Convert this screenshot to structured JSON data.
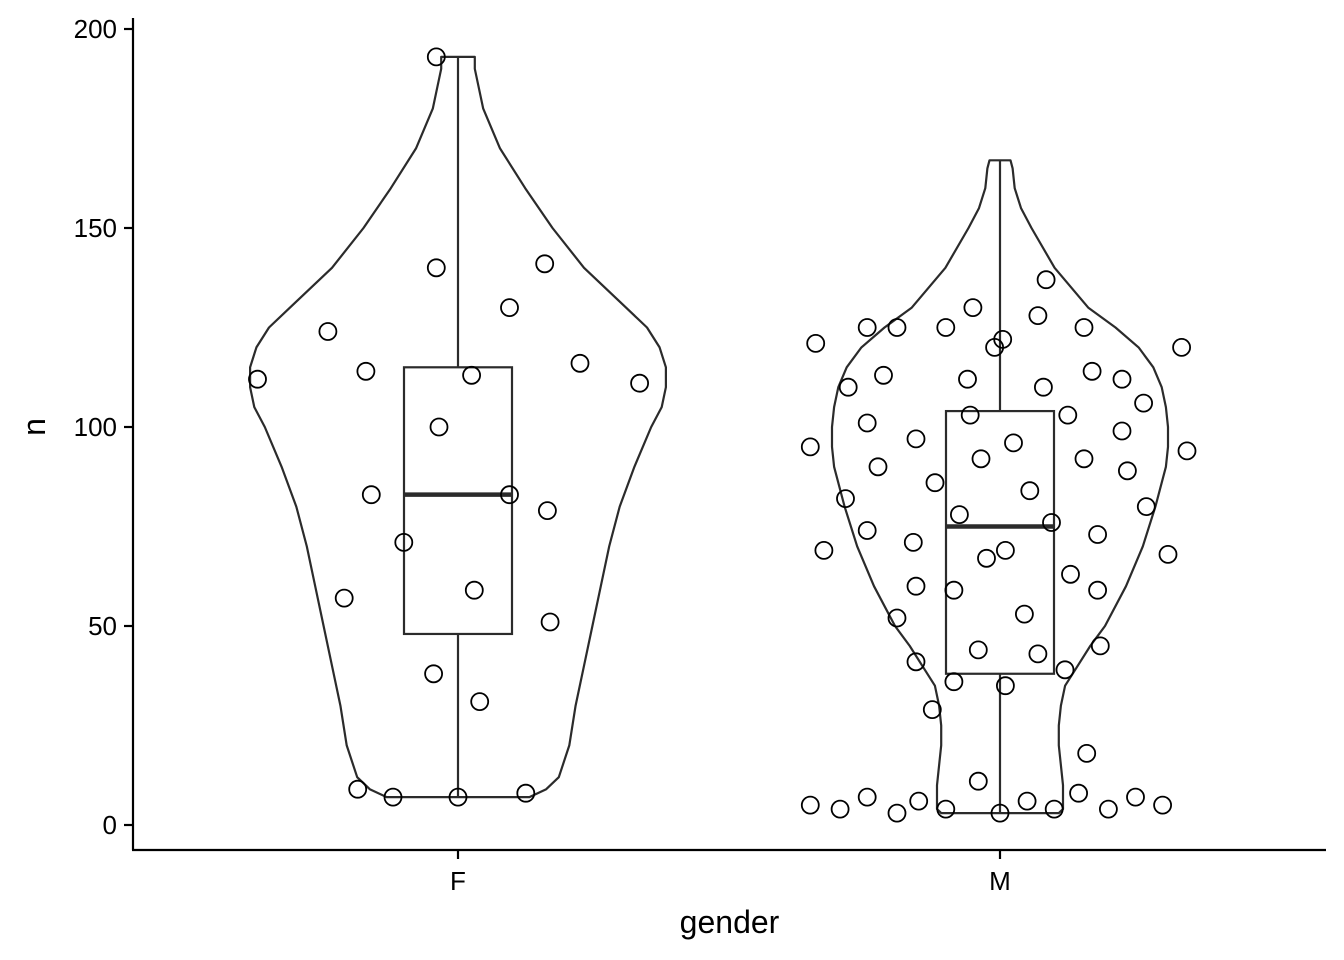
{
  "chart_data": {
    "type": "violin",
    "xlabel": "gender",
    "ylabel": "n",
    "categories": [
      "F",
      "M"
    ],
    "ylim": [
      -6,
      202
    ],
    "yticks": [
      0,
      50,
      100,
      150,
      200
    ],
    "grid": false,
    "colors": {
      "line": "#2b2b2b",
      "axis": "#000000",
      "background": "#ffffff",
      "point_fill": "#ffffff"
    },
    "groups": [
      {
        "name": "F",
        "box": {
          "min": 7,
          "q1": 48,
          "median": 83,
          "q3": 115,
          "max": 193
        },
        "violin": [
          [
            7,
            0.34
          ],
          [
            9,
            0.42
          ],
          [
            12,
            0.48
          ],
          [
            20,
            0.53
          ],
          [
            30,
            0.56
          ],
          [
            40,
            0.6
          ],
          [
            50,
            0.64
          ],
          [
            60,
            0.68
          ],
          [
            70,
            0.72
          ],
          [
            80,
            0.77
          ],
          [
            90,
            0.84
          ],
          [
            100,
            0.92
          ],
          [
            105,
            0.97
          ],
          [
            110,
            0.99
          ],
          [
            115,
            0.99
          ],
          [
            120,
            0.96
          ],
          [
            125,
            0.9
          ],
          [
            130,
            0.8
          ],
          [
            140,
            0.6
          ],
          [
            150,
            0.45
          ],
          [
            160,
            0.32
          ],
          [
            170,
            0.2
          ],
          [
            180,
            0.12
          ],
          [
            185,
            0.1
          ],
          [
            190,
            0.08
          ],
          [
            193,
            0.08
          ]
        ],
        "points": [
          {
            "x": -0.37,
            "y": 112
          },
          {
            "x": -0.24,
            "y": 124
          },
          {
            "x": -0.17,
            "y": 114
          },
          {
            "x": -0.16,
            "y": 83
          },
          {
            "x": -0.21,
            "y": 57
          },
          {
            "x": -0.1,
            "y": 71
          },
          {
            "x": -0.04,
            "y": 193
          },
          {
            "x": -0.04,
            "y": 140
          },
          {
            "x": -0.035,
            "y": 100
          },
          {
            "x": 0.025,
            "y": 113
          },
          {
            "x": 0.095,
            "y": 83
          },
          {
            "x": 0.095,
            "y": 130
          },
          {
            "x": 0.16,
            "y": 141
          },
          {
            "x": 0.225,
            "y": 116
          },
          {
            "x": 0.335,
            "y": 111
          },
          {
            "x": 0.165,
            "y": 79
          },
          {
            "x": 0.17,
            "y": 51
          },
          {
            "x": 0.03,
            "y": 59
          },
          {
            "x": -0.045,
            "y": 38
          },
          {
            "x": 0.04,
            "y": 31
          },
          {
            "x": -0.185,
            "y": 9
          },
          {
            "x": -0.12,
            "y": 7
          },
          {
            "x": 0.0,
            "y": 7
          },
          {
            "x": 0.125,
            "y": 8
          }
        ]
      },
      {
        "name": "M",
        "box": {
          "min": 3,
          "q1": 38,
          "median": 75,
          "q3": 104,
          "max": 167
        },
        "violin": [
          [
            3,
            0.28
          ],
          [
            4,
            0.3
          ],
          [
            5,
            0.3
          ],
          [
            10,
            0.3
          ],
          [
            15,
            0.29
          ],
          [
            20,
            0.28
          ],
          [
            25,
            0.28
          ],
          [
            30,
            0.29
          ],
          [
            35,
            0.31
          ],
          [
            40,
            0.37
          ],
          [
            45,
            0.43
          ],
          [
            50,
            0.5
          ],
          [
            60,
            0.6
          ],
          [
            70,
            0.68
          ],
          [
            80,
            0.74
          ],
          [
            90,
            0.79
          ],
          [
            95,
            0.8
          ],
          [
            100,
            0.8
          ],
          [
            105,
            0.79
          ],
          [
            110,
            0.77
          ],
          [
            115,
            0.73
          ],
          [
            120,
            0.66
          ],
          [
            125,
            0.55
          ],
          [
            130,
            0.42
          ],
          [
            140,
            0.26
          ],
          [
            150,
            0.15
          ],
          [
            155,
            0.1
          ],
          [
            160,
            0.07
          ],
          [
            165,
            0.06
          ],
          [
            167,
            0.05
          ]
        ],
        "points": [
          {
            "x": -0.34,
            "y": 121
          },
          {
            "x": -0.28,
            "y": 110
          },
          {
            "x": -0.245,
            "y": 125
          },
          {
            "x": -0.19,
            "y": 125
          },
          {
            "x": -0.1,
            "y": 125
          },
          {
            "x": -0.05,
            "y": 130
          },
          {
            "x": -0.01,
            "y": 120
          },
          {
            "x": 0.005,
            "y": 122
          },
          {
            "x": 0.07,
            "y": 128
          },
          {
            "x": 0.085,
            "y": 137
          },
          {
            "x": 0.155,
            "y": 125
          },
          {
            "x": 0.17,
            "y": 114
          },
          {
            "x": 0.225,
            "y": 112
          },
          {
            "x": 0.335,
            "y": 120
          },
          {
            "x": -0.215,
            "y": 113
          },
          {
            "x": -0.06,
            "y": 112
          },
          {
            "x": 0.08,
            "y": 110
          },
          {
            "x": -0.35,
            "y": 95
          },
          {
            "x": -0.245,
            "y": 101
          },
          {
            "x": -0.155,
            "y": 97
          },
          {
            "x": -0.055,
            "y": 103
          },
          {
            "x": 0.025,
            "y": 96
          },
          {
            "x": 0.125,
            "y": 103
          },
          {
            "x": 0.225,
            "y": 99
          },
          {
            "x": 0.265,
            "y": 106
          },
          {
            "x": 0.345,
            "y": 94
          },
          {
            "x": -0.225,
            "y": 90
          },
          {
            "x": -0.035,
            "y": 92
          },
          {
            "x": 0.155,
            "y": 92
          },
          {
            "x": 0.235,
            "y": 89
          },
          {
            "x": -0.285,
            "y": 82
          },
          {
            "x": -0.12,
            "y": 86
          },
          {
            "x": 0.055,
            "y": 84
          },
          {
            "x": -0.075,
            "y": 78
          },
          {
            "x": 0.095,
            "y": 76
          },
          {
            "x": 0.27,
            "y": 80
          },
          {
            "x": -0.245,
            "y": 74
          },
          {
            "x": -0.16,
            "y": 71
          },
          {
            "x": -0.025,
            "y": 67
          },
          {
            "x": 0.01,
            "y": 69
          },
          {
            "x": 0.18,
            "y": 73
          },
          {
            "x": 0.31,
            "y": 68
          },
          {
            "x": -0.325,
            "y": 69
          },
          {
            "x": -0.155,
            "y": 60
          },
          {
            "x": -0.085,
            "y": 59
          },
          {
            "x": 0.13,
            "y": 63
          },
          {
            "x": 0.18,
            "y": 59
          },
          {
            "x": -0.19,
            "y": 52
          },
          {
            "x": 0.045,
            "y": 53
          },
          {
            "x": -0.155,
            "y": 41
          },
          {
            "x": -0.04,
            "y": 44
          },
          {
            "x": 0.07,
            "y": 43
          },
          {
            "x": 0.185,
            "y": 45
          },
          {
            "x": -0.085,
            "y": 36
          },
          {
            "x": 0.01,
            "y": 35
          },
          {
            "x": 0.12,
            "y": 39
          },
          {
            "x": -0.125,
            "y": 29
          },
          {
            "x": 0.16,
            "y": 18
          },
          {
            "x": -0.04,
            "y": 11
          },
          {
            "x": -0.35,
            "y": 5
          },
          {
            "x": -0.295,
            "y": 4
          },
          {
            "x": -0.245,
            "y": 7
          },
          {
            "x": -0.19,
            "y": 3
          },
          {
            "x": -0.15,
            "y": 6
          },
          {
            "x": -0.1,
            "y": 4
          },
          {
            "x": 0.0,
            "y": 3
          },
          {
            "x": 0.05,
            "y": 6
          },
          {
            "x": 0.1,
            "y": 4
          },
          {
            "x": 0.145,
            "y": 8
          },
          {
            "x": 0.2,
            "y": 4
          },
          {
            "x": 0.25,
            "y": 7
          },
          {
            "x": 0.3,
            "y": 5
          }
        ]
      }
    ]
  }
}
